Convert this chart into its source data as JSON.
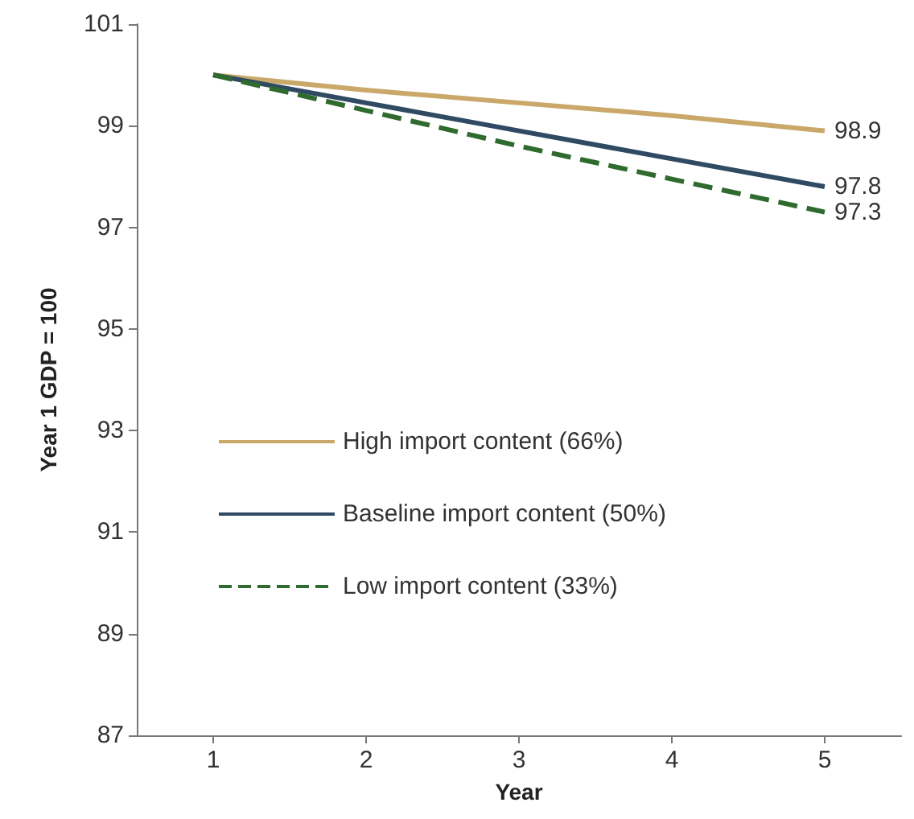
{
  "chart_data": {
    "type": "line",
    "xlabel": "Year",
    "ylabel": "Year 1 GDP = 100",
    "x": [
      1,
      2,
      3,
      4,
      5
    ],
    "series": [
      {
        "name": "High import content (66%)",
        "color": "#c9a86a",
        "values": [
          100,
          99.7,
          99.45,
          99.2,
          98.9
        ],
        "value_labels": [
          null,
          null,
          null,
          null,
          "98.9"
        ],
        "line_style": "solid"
      },
      {
        "name": "Baseline import content (50%)",
        "color": "#2f4a62",
        "values": [
          100,
          99.45,
          98.9,
          98.35,
          97.8
        ],
        "value_labels": [
          null,
          null,
          null,
          null,
          "97.8"
        ],
        "line_style": "solid"
      },
      {
        "name": "Low import content (33%)",
        "color": "#2f6b2f",
        "values": [
          100,
          99.3,
          98.6,
          97.95,
          97.3
        ],
        "value_labels": [
          null,
          null,
          null,
          null,
          "97.3"
        ],
        "line_style": "dashed"
      }
    ],
    "xlim": [
      0.5,
      5.5
    ],
    "xticks": [
      1,
      2,
      3,
      4,
      5
    ],
    "ylim": [
      87,
      101
    ],
    "yticks": [
      87,
      89,
      91,
      93,
      95,
      97,
      99,
      101
    ],
    "grid": false,
    "legend": "left",
    "marker": "none"
  }
}
